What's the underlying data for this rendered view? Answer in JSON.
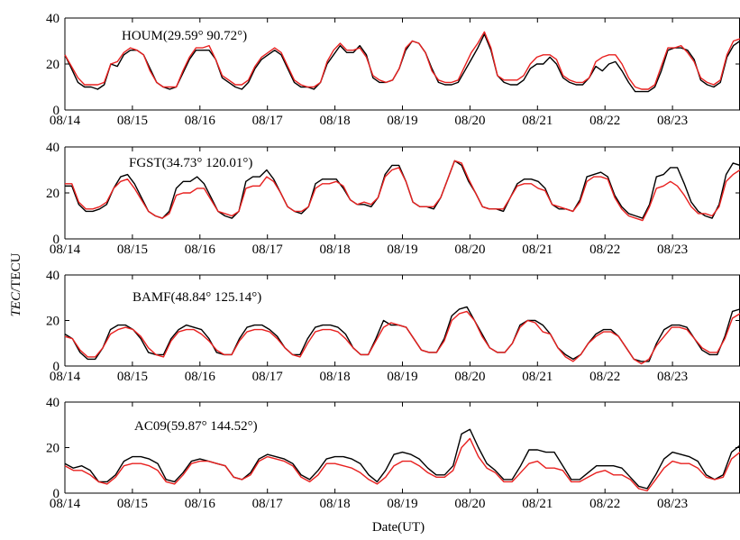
{
  "figure": {
    "ylabel_italic": "TEC",
    "ylabel_rest": "/TECU",
    "xlabel": "Date(UT)"
  },
  "chart_data": [
    {
      "type": "line",
      "title": "HOUM(29.59°  90.72°)",
      "x_tick_labels": [
        "08/14",
        "08/15",
        "08/16",
        "08/17",
        "08/18",
        "08/19",
        "08/20",
        "08/21",
        "08/22",
        "08/23"
      ],
      "xlim": [
        0,
        10
      ],
      "ylim": [
        0,
        40
      ],
      "y_ticks": [
        0,
        20,
        40
      ],
      "grid": false,
      "series": [
        {
          "color": "#000000",
          "values": [
            24,
            18,
            12,
            10,
            10,
            9,
            11,
            20,
            19,
            24,
            26,
            26,
            24,
            18,
            12,
            10,
            9,
            10,
            16,
            22,
            26,
            26,
            26,
            22,
            14,
            12,
            10,
            9,
            12,
            18,
            22,
            24,
            26,
            24,
            18,
            12,
            10,
            10,
            9,
            12,
            20,
            24,
            28,
            25,
            25,
            28,
            24,
            14,
            12,
            12,
            13,
            18,
            26,
            30,
            29,
            25,
            18,
            12,
            11,
            11,
            12,
            17,
            22,
            27,
            33,
            26,
            15,
            12,
            11,
            11,
            13,
            18,
            20,
            20,
            23,
            20,
            14,
            12,
            11,
            11,
            14,
            19,
            17,
            20,
            21,
            17,
            12,
            8,
            8,
            8,
            10,
            17,
            26,
            27,
            27,
            26,
            22,
            13,
            11,
            10,
            12,
            23,
            28,
            30
          ]
        },
        {
          "color": "#e8201f",
          "values": [
            24,
            19,
            14,
            11,
            11,
            11,
            12,
            20,
            21,
            25,
            27,
            26,
            24,
            17,
            12,
            10,
            10,
            10,
            17,
            23,
            27,
            27,
            28,
            22,
            15,
            13,
            11,
            11,
            13,
            19,
            23,
            25,
            27,
            25,
            19,
            13,
            11,
            10,
            10,
            12,
            21,
            26,
            29,
            26,
            26,
            27,
            23,
            15,
            13,
            12,
            13,
            18,
            27,
            30,
            29,
            25,
            17,
            13,
            12,
            12,
            13,
            19,
            25,
            29,
            34,
            27,
            15,
            13,
            13,
            13,
            15,
            20,
            23,
            24,
            24,
            22,
            15,
            13,
            12,
            12,
            14,
            21,
            23,
            24,
            24,
            20,
            14,
            10,
            9,
            9,
            11,
            19,
            27,
            27,
            28,
            25,
            21,
            14,
            12,
            11,
            13,
            24,
            30,
            31
          ]
        }
      ]
    },
    {
      "type": "line",
      "title": "FGST(34.73°  120.01°)",
      "x_tick_labels": [
        "08/14",
        "08/15",
        "08/16",
        "08/17",
        "08/18",
        "08/19",
        "08/20",
        "08/21",
        "08/22",
        "08/23"
      ],
      "xlim": [
        0,
        10
      ],
      "ylim": [
        0,
        40
      ],
      "y_ticks": [
        0,
        20,
        40
      ],
      "grid": false,
      "series": [
        {
          "color": "#000000",
          "values": [
            23,
            23,
            15,
            12,
            12,
            13,
            15,
            22,
            27,
            28,
            24,
            18,
            12,
            10,
            9,
            12,
            22,
            25,
            25,
            27,
            24,
            18,
            12,
            10,
            9,
            12,
            25,
            27,
            27,
            30,
            26,
            20,
            14,
            12,
            11,
            14,
            24,
            26,
            26,
            26,
            22,
            17,
            15,
            15,
            14,
            18,
            28,
            32,
            32,
            25,
            16,
            14,
            14,
            13,
            18,
            26,
            34,
            32,
            25,
            20,
            14,
            13,
            13,
            12,
            18,
            24,
            26,
            26,
            25,
            22,
            15,
            13,
            13,
            12,
            17,
            27,
            28,
            29,
            27,
            19,
            14,
            11,
            10,
            9,
            15,
            27,
            28,
            31,
            31,
            24,
            16,
            12,
            10,
            9,
            15,
            28,
            33,
            32
          ]
        },
        {
          "color": "#e8201f",
          "values": [
            24,
            24,
            16,
            13,
            13,
            14,
            16,
            22,
            25,
            26,
            22,
            17,
            12,
            10,
            9,
            11,
            19,
            20,
            20,
            22,
            22,
            17,
            12,
            11,
            10,
            12,
            22,
            23,
            23,
            27,
            25,
            20,
            14,
            12,
            12,
            14,
            22,
            24,
            24,
            25,
            23,
            17,
            15,
            16,
            15,
            18,
            27,
            30,
            31,
            25,
            16,
            14,
            14,
            14,
            18,
            26,
            34,
            33,
            26,
            20,
            14,
            13,
            13,
            13,
            18,
            23,
            24,
            24,
            22,
            21,
            15,
            14,
            13,
            12,
            16,
            25,
            27,
            27,
            26,
            18,
            13,
            10,
            9,
            8,
            14,
            22,
            23,
            25,
            23,
            19,
            14,
            11,
            11,
            10,
            14,
            25,
            28,
            30
          ]
        }
      ]
    },
    {
      "type": "line",
      "title": "BAMF(48.84°  125.14°)",
      "x_tick_labels": [
        "08/14",
        "08/15",
        "08/16",
        "08/17",
        "08/18",
        "08/19",
        "08/20",
        "08/21",
        "08/22",
        "08/23"
      ],
      "xlim": [
        0,
        10
      ],
      "ylim": [
        0,
        40
      ],
      "y_ticks": [
        0,
        20,
        40
      ],
      "grid": false,
      "series": [
        {
          "color": "#000000",
          "values": [
            14,
            12,
            6,
            3,
            3,
            8,
            16,
            18,
            18,
            16,
            12,
            6,
            5,
            5,
            12,
            16,
            18,
            17,
            16,
            12,
            6,
            5,
            5,
            12,
            17,
            18,
            18,
            16,
            13,
            8,
            5,
            5,
            12,
            17,
            18,
            18,
            17,
            14,
            8,
            5,
            5,
            12,
            20,
            18,
            18,
            17,
            12,
            7,
            6,
            6,
            12,
            22,
            25,
            26,
            20,
            14,
            8,
            6,
            6,
            10,
            18,
            20,
            20,
            18,
            14,
            8,
            5,
            3,
            5,
            10,
            14,
            16,
            16,
            13,
            8,
            3,
            2,
            2,
            10,
            16,
            18,
            18,
            17,
            12,
            7,
            5,
            5,
            13,
            24,
            25
          ]
        },
        {
          "color": "#e8201f",
          "values": [
            13,
            12,
            7,
            4,
            4,
            8,
            14,
            16,
            17,
            16,
            13,
            8,
            5,
            4,
            11,
            15,
            16,
            16,
            14,
            11,
            7,
            5,
            5,
            11,
            15,
            16,
            16,
            15,
            12,
            8,
            5,
            4,
            10,
            15,
            16,
            16,
            15,
            12,
            8,
            5,
            5,
            11,
            17,
            19,
            18,
            17,
            12,
            7,
            6,
            6,
            11,
            20,
            23,
            24,
            20,
            13,
            8,
            6,
            6,
            10,
            17,
            20,
            19,
            15,
            14,
            8,
            4,
            2,
            5,
            10,
            13,
            15,
            15,
            13,
            8,
            3,
            1,
            3,
            9,
            13,
            17,
            17,
            16,
            12,
            8,
            6,
            6,
            12,
            21,
            23
          ]
        }
      ]
    },
    {
      "type": "line",
      "title": "AC09(59.87°  144.52°)",
      "x_tick_labels": [
        "08/14",
        "08/15",
        "08/16",
        "08/17",
        "08/18",
        "08/19",
        "08/20",
        "08/21",
        "08/22",
        "08/23"
      ],
      "xlim": [
        0,
        10
      ],
      "ylim": [
        0,
        40
      ],
      "y_ticks": [
        0,
        20,
        40
      ],
      "grid": false,
      "series": [
        {
          "color": "#000000",
          "values": [
            13,
            11,
            12,
            10,
            5,
            5,
            8,
            14,
            16,
            16,
            15,
            13,
            6,
            5,
            9,
            14,
            15,
            14,
            13,
            12,
            7,
            6,
            9,
            15,
            17,
            16,
            15,
            13,
            8,
            6,
            10,
            15,
            16,
            16,
            15,
            13,
            8,
            5,
            10,
            17,
            18,
            17,
            15,
            11,
            8,
            8,
            12,
            26,
            28,
            20,
            13,
            10,
            6,
            6,
            12,
            19,
            19,
            18,
            18,
            12,
            6,
            6,
            9,
            12,
            12,
            12,
            11,
            7,
            3,
            2,
            8,
            15,
            18,
            17,
            16,
            14,
            8,
            6,
            8,
            18,
            21
          ]
        },
        {
          "color": "#e8201f",
          "values": [
            12,
            10,
            10,
            8,
            5,
            4,
            7,
            12,
            13,
            13,
            12,
            10,
            5,
            4,
            8,
            13,
            14,
            14,
            13,
            12,
            7,
            6,
            8,
            14,
            16,
            15,
            14,
            12,
            7,
            5,
            8,
            13,
            13,
            12,
            11,
            9,
            6,
            4,
            7,
            12,
            14,
            14,
            12,
            9,
            7,
            7,
            10,
            20,
            24,
            16,
            11,
            9,
            5,
            5,
            9,
            13,
            14,
            11,
            11,
            10,
            5,
            5,
            7,
            9,
            10,
            8,
            8,
            6,
            2,
            1,
            6,
            11,
            14,
            13,
            13,
            11,
            7,
            6,
            7,
            15,
            18
          ]
        }
      ]
    }
  ]
}
